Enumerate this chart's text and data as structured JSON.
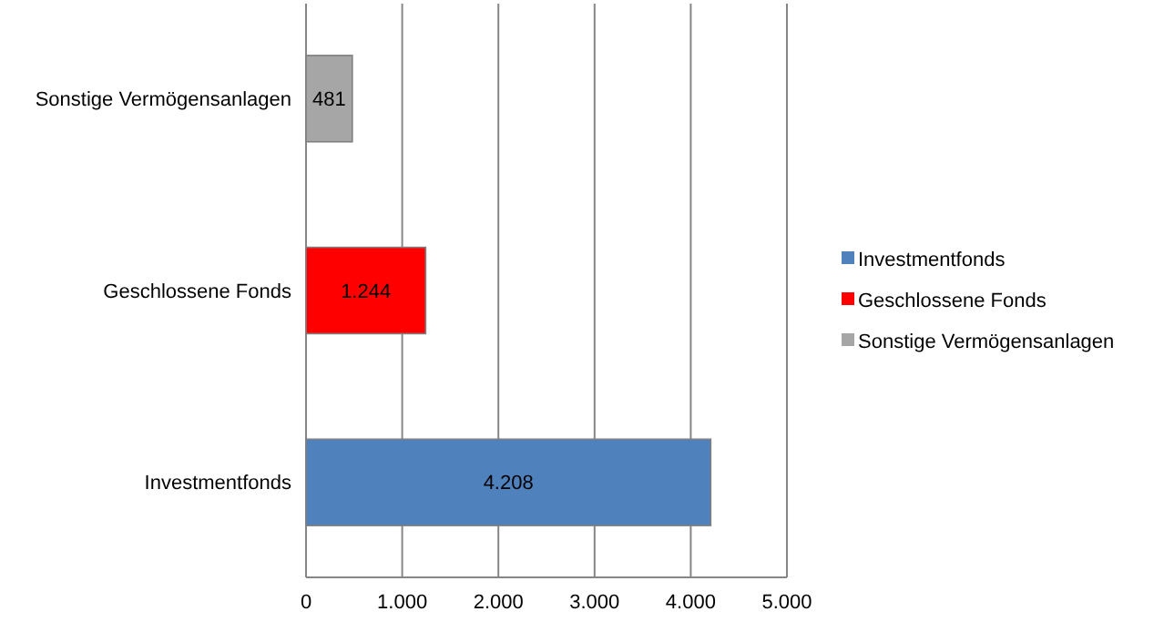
{
  "chart_data": {
    "type": "bar",
    "orientation": "horizontal",
    "categories": [
      "Sonstige Vermögensanlagen",
      "Geschlossene Fonds",
      "Investmentfonds"
    ],
    "series": [
      {
        "name": "Investmentfonds",
        "color": "#4f81bd",
        "values": [
          null,
          null,
          4208
        ],
        "value_labels": [
          null,
          null,
          "4.208"
        ]
      },
      {
        "name": "Geschlossene Fonds",
        "color": "#ff0000",
        "values": [
          null,
          1244,
          null
        ],
        "value_labels": [
          null,
          "1.244",
          null
        ]
      },
      {
        "name": "Sonstige Vermögensanlagen",
        "color": "#a6a6a6",
        "values": [
          481,
          null,
          null
        ],
        "value_labels": [
          "481",
          null,
          null
        ]
      }
    ],
    "xlim": [
      0,
      5000
    ],
    "xticks": [
      0,
      {
        "value": 1000,
        "label": "1.000"
      },
      {
        "value": 2000,
        "label": "2.000"
      },
      {
        "value": 3000,
        "label": "3.000"
      },
      {
        "value": 4000,
        "label": "4.000"
      },
      {
        "value": 5000,
        "label": "5.000"
      }
    ],
    "grid": "x",
    "legend": "right"
  }
}
